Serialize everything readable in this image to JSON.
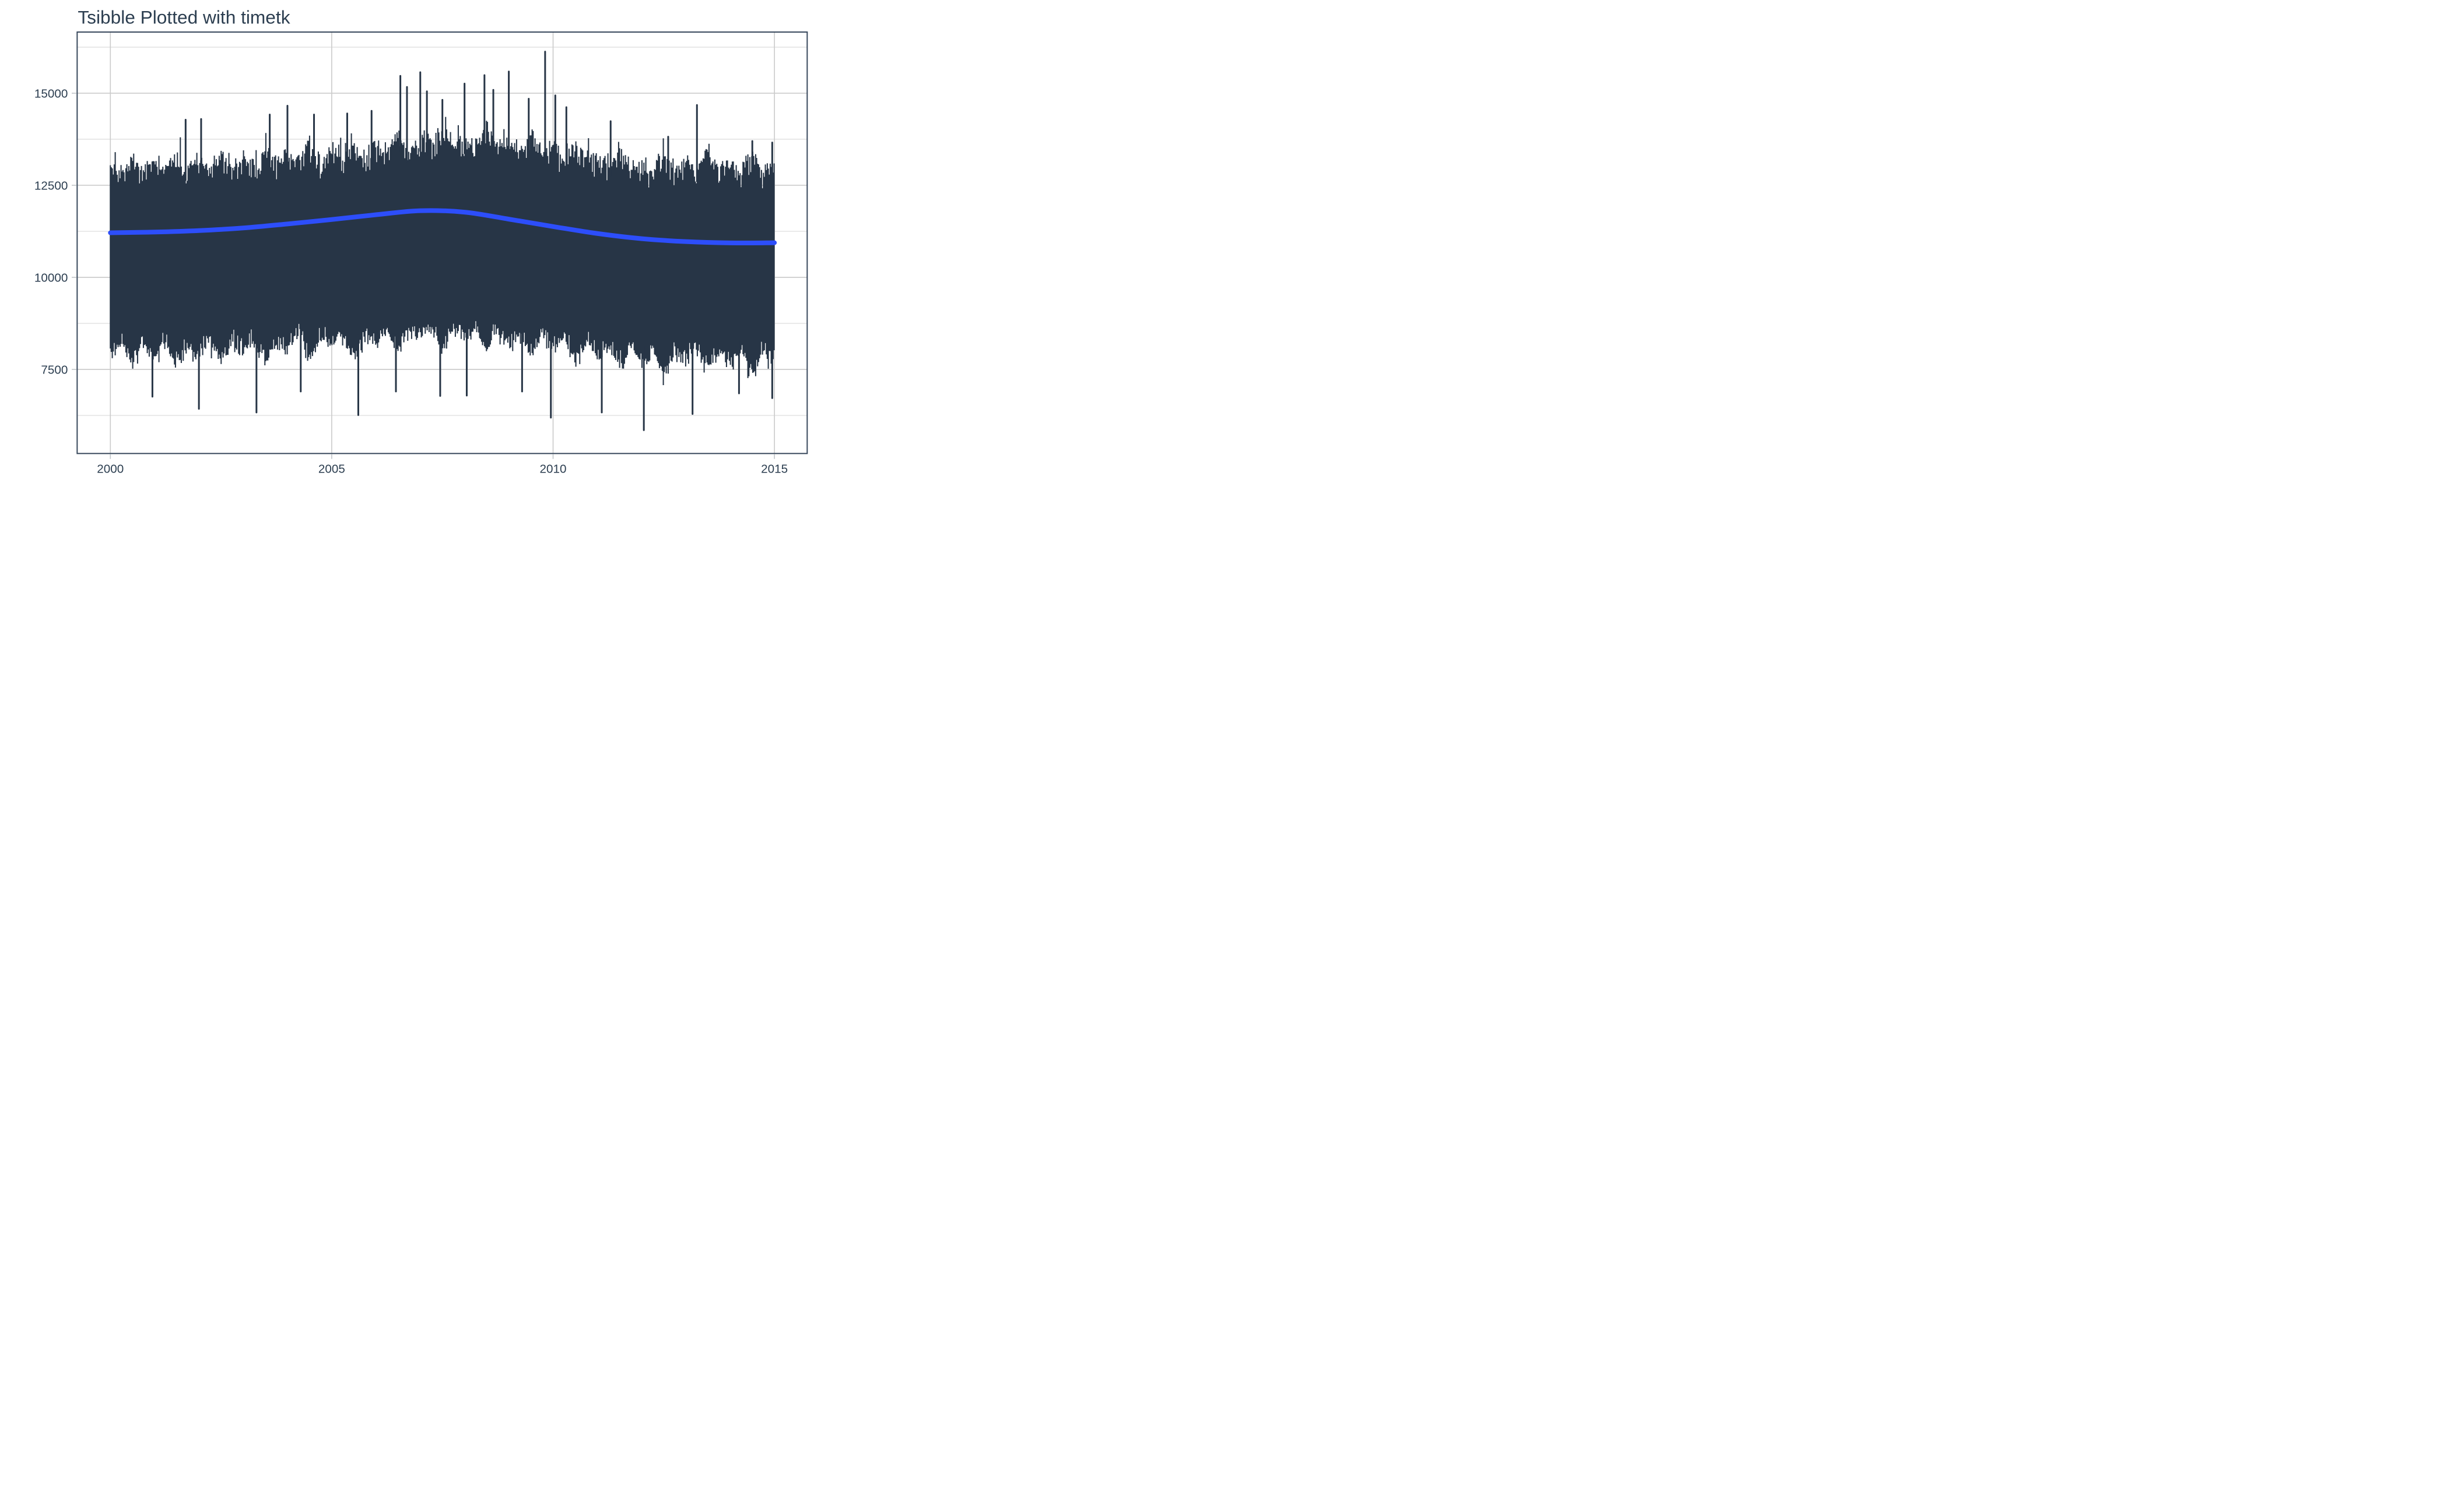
{
  "chart_data": {
    "type": "line",
    "title": "Tsibble Plotted with timetk",
    "xlabel": "",
    "ylabel": "",
    "legend": "none",
    "grid": true,
    "x_axis": {
      "tick_labels": [
        "2000",
        "2005",
        "2010",
        "2015"
      ],
      "ticks": [
        2000,
        2005,
        2010,
        2015
      ],
      "range": [
        1999.25,
        2015.74
      ]
    },
    "y_axis": {
      "tick_labels": [
        "15000",
        "12500",
        "10000",
        "7500"
      ],
      "ticks": [
        15000,
        12500,
        10000,
        7500
      ],
      "minor_ticks": [
        16250,
        13750,
        11250,
        8750,
        6250
      ],
      "range": [
        5216,
        16661
      ]
    },
    "series": [
      {
        "name": "observed-daily-series",
        "kind": "dense-daily-band",
        "color": "#273546",
        "x_start": 2000.0,
        "x_end": 2015.0,
        "envelope": {
          "t": [
            2000,
            2000.25,
            2000.5,
            2000.75,
            2001,
            2001.25,
            2001.5,
            2001.75,
            2002,
            2002.25,
            2002.5,
            2002.75,
            2003,
            2003.25,
            2003.5,
            2003.75,
            2004,
            2004.25,
            2004.5,
            2004.75,
            2005,
            2005.25,
            2005.5,
            2005.75,
            2006,
            2006.25,
            2006.5,
            2006.75,
            2007,
            2007.25,
            2007.5,
            2007.75,
            2008,
            2008.25,
            2008.5,
            2008.75,
            2009,
            2009.25,
            2009.5,
            2009.75,
            2010,
            2010.25,
            2010.5,
            2010.75,
            2011,
            2011.25,
            2011.5,
            2011.75,
            2012,
            2012.25,
            2012.5,
            2012.75,
            2013,
            2013.25,
            2013.5,
            2013.75,
            2014,
            2014.25,
            2014.5,
            2014.75,
            2015
          ],
          "upper": [
            13050,
            12850,
            13300,
            12850,
            13100,
            12900,
            13350,
            12900,
            13150,
            12950,
            13400,
            12950,
            13220,
            13020,
            13470,
            13020,
            13350,
            13150,
            13600,
            13150,
            13420,
            13220,
            13670,
            13220,
            13600,
            13400,
            13850,
            13400,
            13780,
            13580,
            14030,
            13580,
            13720,
            13520,
            13970,
            13520,
            13600,
            13400,
            13850,
            13400,
            13440,
            13240,
            13690,
            13240,
            13220,
            13020,
            13470,
            13020,
            13060,
            12860,
            13310,
            12860,
            13160,
            12960,
            13410,
            12960,
            13060,
            12860,
            13310,
            12860,
            13050
          ],
          "lower": [
            7900,
            8200,
            7600,
            8150,
            7900,
            8200,
            7600,
            8150,
            7950,
            8250,
            7650,
            8200,
            8000,
            8300,
            7700,
            8250,
            8100,
            8400,
            7800,
            8350,
            8150,
            8450,
            7850,
            8400,
            8250,
            8550,
            7950,
            8500,
            8350,
            8650,
            8050,
            8600,
            8300,
            8600,
            8000,
            8550,
            8150,
            8450,
            7850,
            8400,
            8050,
            8350,
            7750,
            8300,
            7850,
            8150,
            7550,
            8100,
            7700,
            8000,
            7400,
            7950,
            7750,
            8050,
            7450,
            8000,
            7700,
            8000,
            7400,
            7950,
            7750
          ]
        },
        "peak_spikes": [
          [
            2001.7,
            14280
          ],
          [
            2002.05,
            14300
          ],
          [
            2003.6,
            14420
          ],
          [
            2004.0,
            14660
          ],
          [
            2004.6,
            14420
          ],
          [
            2005.35,
            14450
          ],
          [
            2005.9,
            14520
          ],
          [
            2006.55,
            15470
          ],
          [
            2006.7,
            15170
          ],
          [
            2007.0,
            15570
          ],
          [
            2007.15,
            15050
          ],
          [
            2007.5,
            14820
          ],
          [
            2008.0,
            15260
          ],
          [
            2008.45,
            15490
          ],
          [
            2008.65,
            15090
          ],
          [
            2009.0,
            15590
          ],
          [
            2009.45,
            14850
          ],
          [
            2009.82,
            16130
          ],
          [
            2010.05,
            14940
          ],
          [
            2010.3,
            14620
          ],
          [
            2011.3,
            14240
          ],
          [
            2012.6,
            13820
          ],
          [
            2013.25,
            14680
          ],
          [
            2014.5,
            13700
          ],
          [
            2014.95,
            13660
          ]
        ],
        "trough_dips": [
          [
            2000.95,
            6760
          ],
          [
            2002.0,
            6430
          ],
          [
            2003.3,
            6330
          ],
          [
            2004.3,
            6900
          ],
          [
            2005.6,
            6260
          ],
          [
            2006.45,
            6900
          ],
          [
            2007.45,
            6780
          ],
          [
            2008.05,
            6790
          ],
          [
            2009.3,
            6900
          ],
          [
            2009.95,
            6190
          ],
          [
            2011.1,
            6330
          ],
          [
            2012.05,
            5850
          ],
          [
            2013.15,
            6290
          ],
          [
            2014.2,
            6850
          ],
          [
            2014.95,
            6720
          ]
        ]
      },
      {
        "name": "smoother-trend",
        "kind": "loess-smooth-line",
        "color": "#2d4efa",
        "t": [
          2000,
          2001,
          2002,
          2003,
          2004,
          2005,
          2006,
          2007,
          2008,
          2009,
          2010,
          2011,
          2012,
          2013,
          2014,
          2015
        ],
        "values": [
          11210,
          11230,
          11270,
          11340,
          11450,
          11570,
          11700,
          11810,
          11770,
          11580,
          11380,
          11190,
          11050,
          10970,
          10935,
          10940
        ]
      }
    ],
    "style": {
      "panel_background": "#ffffff",
      "panel_border_color": "#37475b",
      "grid_major_color": "#cccccc",
      "grid_minor_color": "#dddddd",
      "tick_mark_color": "#c3c7cb",
      "axis_text_color": "#2c3e50",
      "title_color": "#2c3e50"
    }
  }
}
